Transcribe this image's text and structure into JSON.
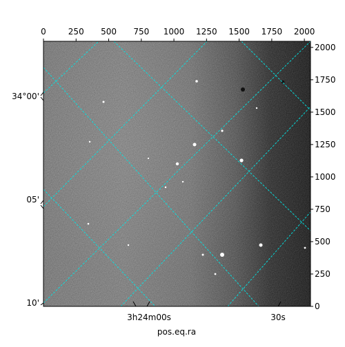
{
  "chart_data": {
    "type": "heatmap",
    "description_colormap": "gray",
    "top_axis": {
      "ticks": [
        0,
        250,
        500,
        750,
        1000,
        1250,
        1500,
        1750,
        2000
      ],
      "range": [
        0,
        2047
      ]
    },
    "right_axis": {
      "ticks": [
        0,
        250,
        500,
        750,
        1000,
        1250,
        1500,
        1750,
        2000
      ],
      "range": [
        0,
        2047
      ]
    },
    "bottom_axis": {
      "label": "pos.eq.ra",
      "ticks": [
        "3h24m00s",
        "30s"
      ]
    },
    "left_axis": {
      "ticks": [
        "34°00'",
        "05'",
        "10'"
      ]
    },
    "grid": true,
    "grid_color": "#00e5e5",
    "background_gradient": "lighter gray at left-center, black at right edge"
  }
}
